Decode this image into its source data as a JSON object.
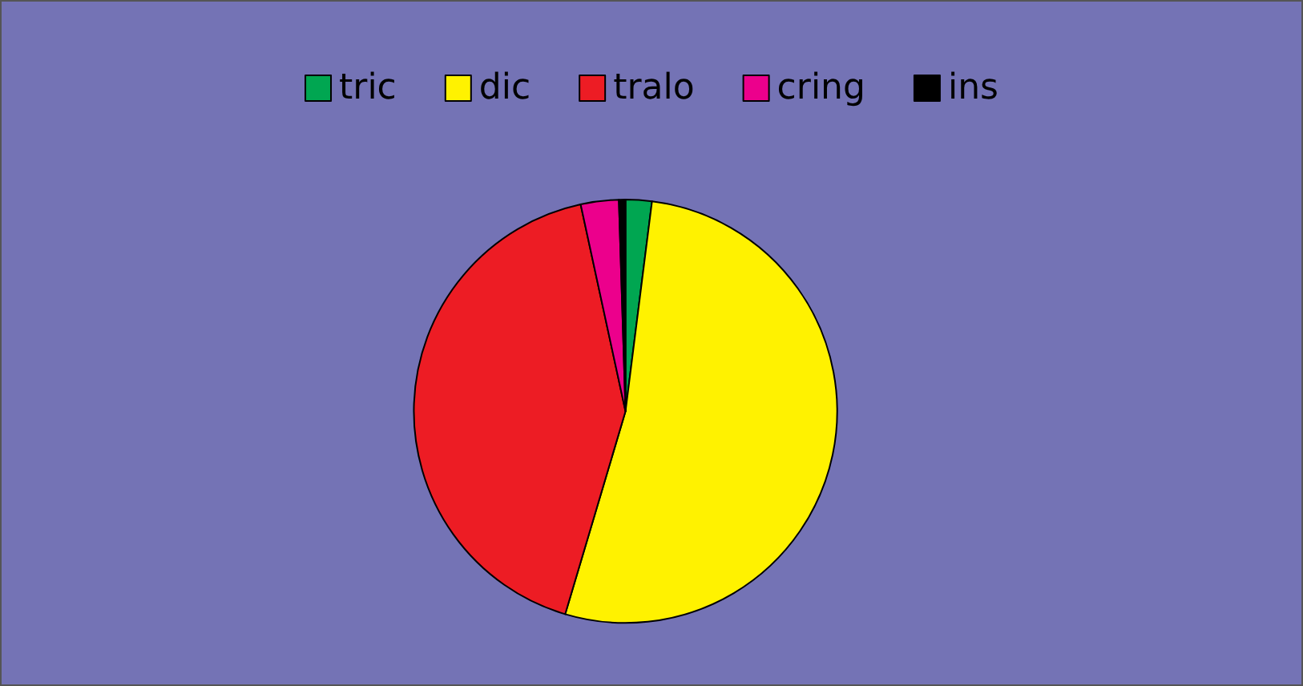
{
  "chart_data": {
    "type": "pie",
    "categories": [
      "tric",
      "dic",
      "tralo",
      "cring",
      "ins"
    ],
    "values": [
      2,
      52.6,
      42,
      2.9,
      0.5
    ],
    "colors": [
      "#00a651",
      "#fff200",
      "#ed1c24",
      "#ec008c",
      "#000000"
    ],
    "legend": "top"
  }
}
